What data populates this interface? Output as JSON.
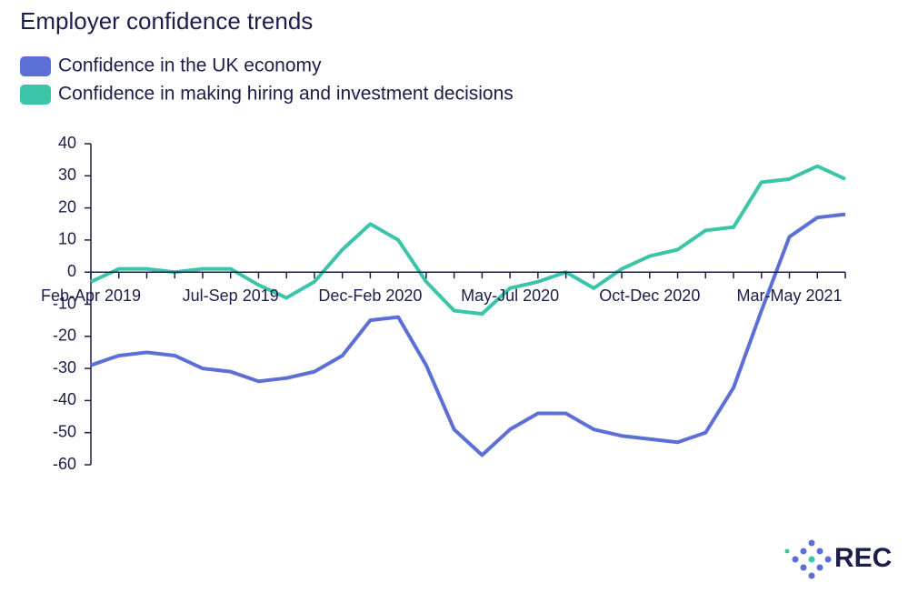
{
  "chart_data": {
    "type": "line",
    "title": "Employer confidence trends",
    "categories": [
      "Feb-Apr 2019",
      null,
      null,
      null,
      null,
      "Jul-Sep 2019",
      null,
      null,
      null,
      null,
      "Dec-Feb 2020",
      null,
      null,
      null,
      null,
      "May-Jul 2020",
      null,
      null,
      null,
      null,
      "Oct-Dec 2020",
      null,
      null,
      null,
      null,
      "Mar-May 2021",
      null,
      null
    ],
    "series": [
      {
        "name": "Confidence in the UK economy",
        "color": "#5b6fd6",
        "values": [
          -29,
          -26,
          -25,
          -26,
          -30,
          -31,
          -34,
          -33,
          -31,
          -26,
          -15,
          -14,
          -29,
          -49,
          -57,
          -49,
          -44,
          -44,
          -49,
          -51,
          -52,
          -53,
          -50,
          -36,
          -12,
          11,
          17,
          18
        ]
      },
      {
        "name": "Confidence in making hiring and investment decisions",
        "color": "#3cc4a9",
        "values": [
          -3,
          1,
          1,
          0,
          1,
          1,
          -4,
          -8,
          -3,
          7,
          15,
          10,
          -3,
          -12,
          -13,
          -5,
          -3,
          0,
          -5,
          1,
          5,
          7,
          13,
          14,
          28,
          29,
          33,
          29
        ]
      }
    ],
    "ylim": [
      -60,
      40
    ],
    "yticks": [
      -60,
      -50,
      -40,
      -30,
      -20,
      -10,
      0,
      10,
      20,
      30,
      40
    ],
    "logo": "REC"
  }
}
